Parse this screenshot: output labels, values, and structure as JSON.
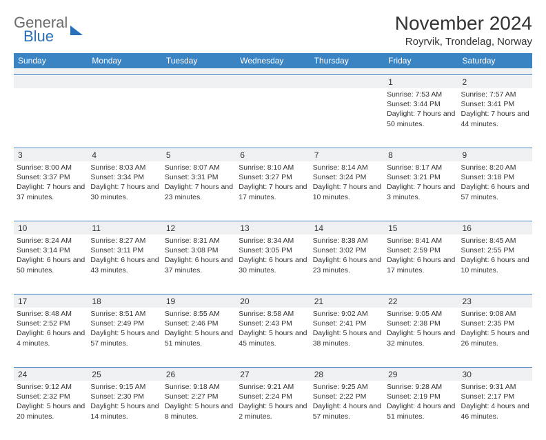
{
  "brand": {
    "text1": "General",
    "text2": "Blue"
  },
  "title": "November 2024",
  "location": "Royrvik, Trondelag, Norway",
  "weekdays": [
    "Sunday",
    "Monday",
    "Tuesday",
    "Wednesday",
    "Thursday",
    "Friday",
    "Saturday"
  ],
  "colors": {
    "header_bg": "#3b84c4",
    "accent": "#2a70b8",
    "daynum_bg": "#eef0f1",
    "text": "#333333",
    "logo_gray": "#6b6b6b"
  },
  "weeks": [
    [
      {
        "n": "",
        "sunrise": "",
        "sunset": "",
        "daylight": ""
      },
      {
        "n": "",
        "sunrise": "",
        "sunset": "",
        "daylight": ""
      },
      {
        "n": "",
        "sunrise": "",
        "sunset": "",
        "daylight": ""
      },
      {
        "n": "",
        "sunrise": "",
        "sunset": "",
        "daylight": ""
      },
      {
        "n": "",
        "sunrise": "",
        "sunset": "",
        "daylight": ""
      },
      {
        "n": "1",
        "sunrise": "Sunrise: 7:53 AM",
        "sunset": "Sunset: 3:44 PM",
        "daylight": "Daylight: 7 hours and 50 minutes."
      },
      {
        "n": "2",
        "sunrise": "Sunrise: 7:57 AM",
        "sunset": "Sunset: 3:41 PM",
        "daylight": "Daylight: 7 hours and 44 minutes."
      }
    ],
    [
      {
        "n": "3",
        "sunrise": "Sunrise: 8:00 AM",
        "sunset": "Sunset: 3:37 PM",
        "daylight": "Daylight: 7 hours and 37 minutes."
      },
      {
        "n": "4",
        "sunrise": "Sunrise: 8:03 AM",
        "sunset": "Sunset: 3:34 PM",
        "daylight": "Daylight: 7 hours and 30 minutes."
      },
      {
        "n": "5",
        "sunrise": "Sunrise: 8:07 AM",
        "sunset": "Sunset: 3:31 PM",
        "daylight": "Daylight: 7 hours and 23 minutes."
      },
      {
        "n": "6",
        "sunrise": "Sunrise: 8:10 AM",
        "sunset": "Sunset: 3:27 PM",
        "daylight": "Daylight: 7 hours and 17 minutes."
      },
      {
        "n": "7",
        "sunrise": "Sunrise: 8:14 AM",
        "sunset": "Sunset: 3:24 PM",
        "daylight": "Daylight: 7 hours and 10 minutes."
      },
      {
        "n": "8",
        "sunrise": "Sunrise: 8:17 AM",
        "sunset": "Sunset: 3:21 PM",
        "daylight": "Daylight: 7 hours and 3 minutes."
      },
      {
        "n": "9",
        "sunrise": "Sunrise: 8:20 AM",
        "sunset": "Sunset: 3:18 PM",
        "daylight": "Daylight: 6 hours and 57 minutes."
      }
    ],
    [
      {
        "n": "10",
        "sunrise": "Sunrise: 8:24 AM",
        "sunset": "Sunset: 3:14 PM",
        "daylight": "Daylight: 6 hours and 50 minutes."
      },
      {
        "n": "11",
        "sunrise": "Sunrise: 8:27 AM",
        "sunset": "Sunset: 3:11 PM",
        "daylight": "Daylight: 6 hours and 43 minutes."
      },
      {
        "n": "12",
        "sunrise": "Sunrise: 8:31 AM",
        "sunset": "Sunset: 3:08 PM",
        "daylight": "Daylight: 6 hours and 37 minutes."
      },
      {
        "n": "13",
        "sunrise": "Sunrise: 8:34 AM",
        "sunset": "Sunset: 3:05 PM",
        "daylight": "Daylight: 6 hours and 30 minutes."
      },
      {
        "n": "14",
        "sunrise": "Sunrise: 8:38 AM",
        "sunset": "Sunset: 3:02 PM",
        "daylight": "Daylight: 6 hours and 23 minutes."
      },
      {
        "n": "15",
        "sunrise": "Sunrise: 8:41 AM",
        "sunset": "Sunset: 2:59 PM",
        "daylight": "Daylight: 6 hours and 17 minutes."
      },
      {
        "n": "16",
        "sunrise": "Sunrise: 8:45 AM",
        "sunset": "Sunset: 2:55 PM",
        "daylight": "Daylight: 6 hours and 10 minutes."
      }
    ],
    [
      {
        "n": "17",
        "sunrise": "Sunrise: 8:48 AM",
        "sunset": "Sunset: 2:52 PM",
        "daylight": "Daylight: 6 hours and 4 minutes."
      },
      {
        "n": "18",
        "sunrise": "Sunrise: 8:51 AM",
        "sunset": "Sunset: 2:49 PM",
        "daylight": "Daylight: 5 hours and 57 minutes."
      },
      {
        "n": "19",
        "sunrise": "Sunrise: 8:55 AM",
        "sunset": "Sunset: 2:46 PM",
        "daylight": "Daylight: 5 hours and 51 minutes."
      },
      {
        "n": "20",
        "sunrise": "Sunrise: 8:58 AM",
        "sunset": "Sunset: 2:43 PM",
        "daylight": "Daylight: 5 hours and 45 minutes."
      },
      {
        "n": "21",
        "sunrise": "Sunrise: 9:02 AM",
        "sunset": "Sunset: 2:41 PM",
        "daylight": "Daylight: 5 hours and 38 minutes."
      },
      {
        "n": "22",
        "sunrise": "Sunrise: 9:05 AM",
        "sunset": "Sunset: 2:38 PM",
        "daylight": "Daylight: 5 hours and 32 minutes."
      },
      {
        "n": "23",
        "sunrise": "Sunrise: 9:08 AM",
        "sunset": "Sunset: 2:35 PM",
        "daylight": "Daylight: 5 hours and 26 minutes."
      }
    ],
    [
      {
        "n": "24",
        "sunrise": "Sunrise: 9:12 AM",
        "sunset": "Sunset: 2:32 PM",
        "daylight": "Daylight: 5 hours and 20 minutes."
      },
      {
        "n": "25",
        "sunrise": "Sunrise: 9:15 AM",
        "sunset": "Sunset: 2:30 PM",
        "daylight": "Daylight: 5 hours and 14 minutes."
      },
      {
        "n": "26",
        "sunrise": "Sunrise: 9:18 AM",
        "sunset": "Sunset: 2:27 PM",
        "daylight": "Daylight: 5 hours and 8 minutes."
      },
      {
        "n": "27",
        "sunrise": "Sunrise: 9:21 AM",
        "sunset": "Sunset: 2:24 PM",
        "daylight": "Daylight: 5 hours and 2 minutes."
      },
      {
        "n": "28",
        "sunrise": "Sunrise: 9:25 AM",
        "sunset": "Sunset: 2:22 PM",
        "daylight": "Daylight: 4 hours and 57 minutes."
      },
      {
        "n": "29",
        "sunrise": "Sunrise: 9:28 AM",
        "sunset": "Sunset: 2:19 PM",
        "daylight": "Daylight: 4 hours and 51 minutes."
      },
      {
        "n": "30",
        "sunrise": "Sunrise: 9:31 AM",
        "sunset": "Sunset: 2:17 PM",
        "daylight": "Daylight: 4 hours and 46 minutes."
      }
    ]
  ]
}
